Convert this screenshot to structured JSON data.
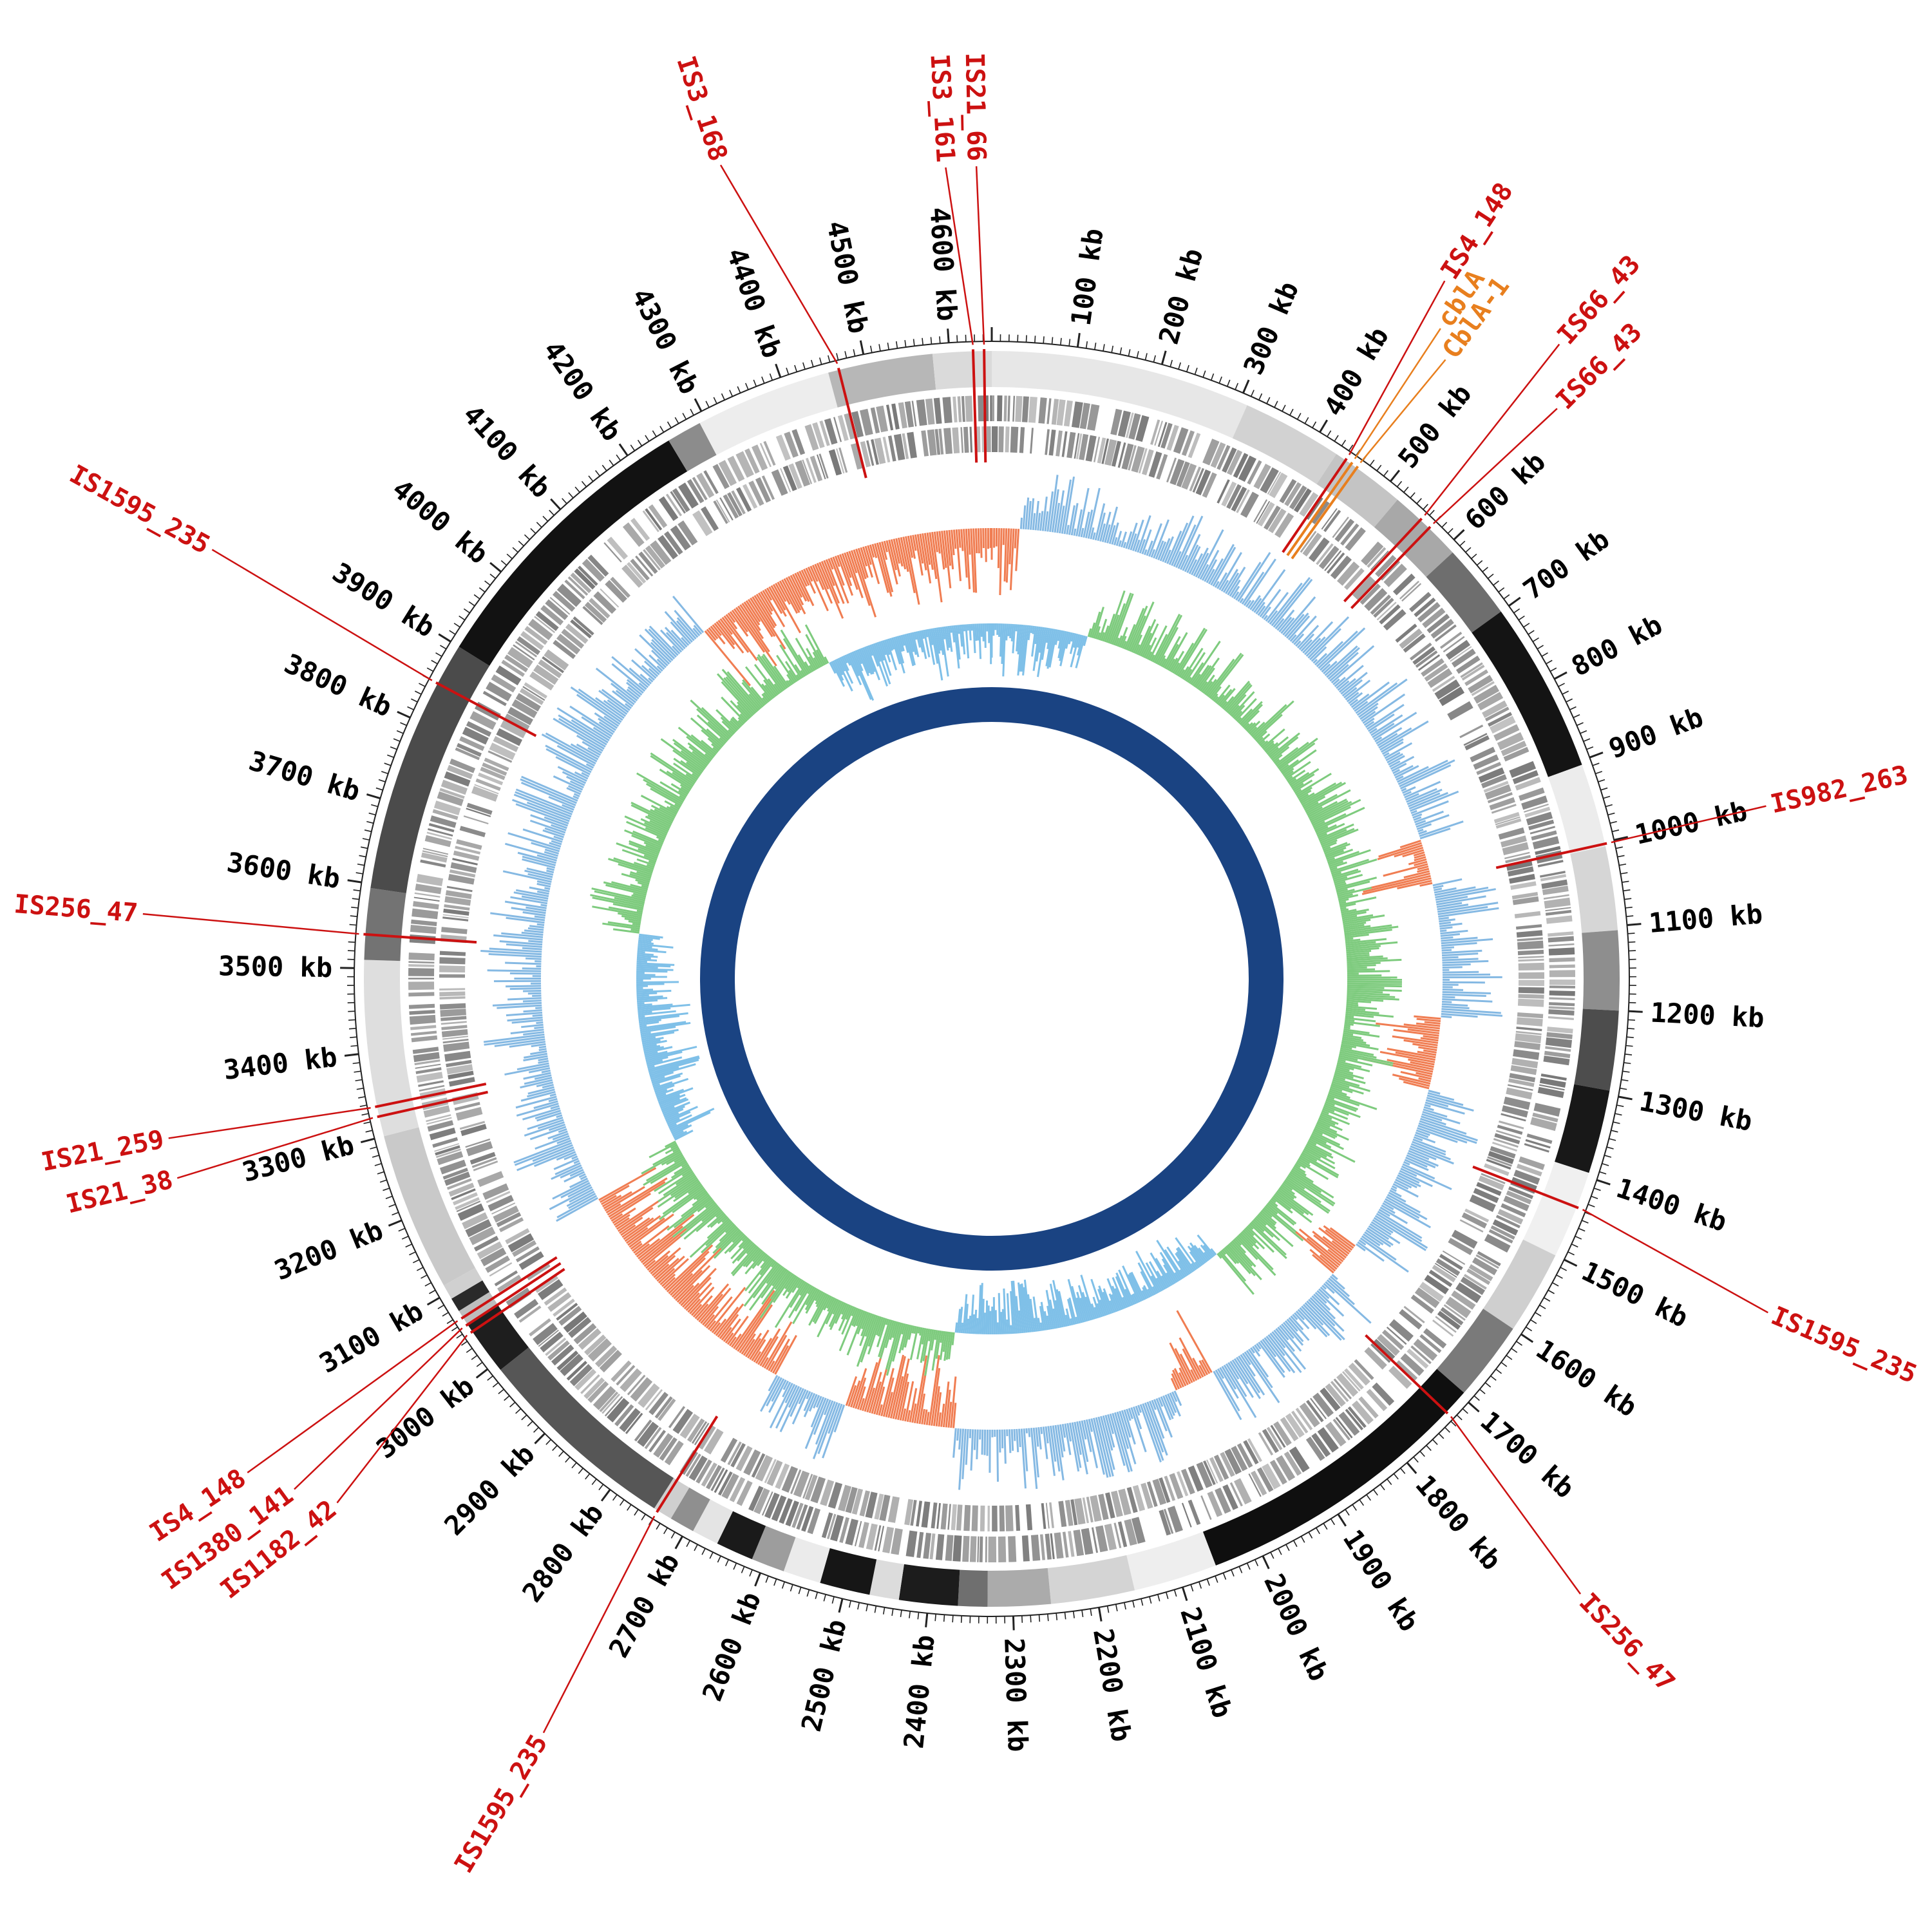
{
  "page": {
    "background": "#ffffff"
  },
  "chart_data": {
    "type": "circular-genome-map",
    "title": "",
    "description": "Circos-style circular bacterial genome map: outer kb scale, grayscale contig ring, two gray CDS rings, GC content histogram (blue above / orange below average), GC skew histogram (green positive / blue negative), solid navy backbone ring, and red/orange IS-element and gene annotations.",
    "genome_length_kb": 4650,
    "scale": {
      "unit": "kb",
      "tick_interval_kb": 100,
      "minor_tick_kb": 10,
      "tick_labels": [
        "100 kb",
        "200 kb",
        "300 kb",
        "400 kb",
        "500 kb",
        "600 kb",
        "700 kb",
        "800 kb",
        "900 kb",
        "1000 kb",
        "1100 kb",
        "1200 kb",
        "1300 kb",
        "1400 kb",
        "1500 kb",
        "1600 kb",
        "1700 kb",
        "1800 kb",
        "1900 kb",
        "2000 kb",
        "2100 kb",
        "2200 kb",
        "2300 kb",
        "2400 kb",
        "2500 kb",
        "2600 kb",
        "2700 kb",
        "2800 kb",
        "2900 kb",
        "3000 kb",
        "3100 kb",
        "3200 kb",
        "3300 kb",
        "3400 kb",
        "3500 kb",
        "3600 kb",
        "3700 kb",
        "3800 kb",
        "3900 kb",
        "4000 kb",
        "4100 kb",
        "4200 kb",
        "4300 kb",
        "4400 kb",
        "4500 kb",
        "4600 kb"
      ]
    },
    "rings_outer_to_inner": [
      {
        "name": "scale-ticks",
        "color": "#222222"
      },
      {
        "name": "contigs",
        "style": "grayscale-blocks"
      },
      {
        "name": "cds-forward",
        "color": "#9a9a9a"
      },
      {
        "name": "cds-reverse",
        "color": "#9a9a9a"
      },
      {
        "name": "gc-content",
        "above_color": "#85b9e3",
        "below_color": "#f07d52"
      },
      {
        "name": "gc-skew",
        "positive_color": "#7ecb7e",
        "negative_color": "#7fc0e8"
      },
      {
        "name": "backbone",
        "color": "#1a4382"
      }
    ],
    "contig_segments": [
      [
        0,
        310,
        "#e7e7e7"
      ],
      [
        310,
        430,
        "#d2d2d2"
      ],
      [
        430,
        520,
        "#c4c4c4"
      ],
      [
        520,
        610,
        "#a8a8a8"
      ],
      [
        610,
        700,
        "#6e6e6e"
      ],
      [
        700,
        905,
        "#141414"
      ],
      [
        905,
        1005,
        "#ececec"
      ],
      [
        1005,
        1105,
        "#d6d6d6"
      ],
      [
        1105,
        1200,
        "#8e8e8e"
      ],
      [
        1200,
        1295,
        "#4d4d4d"
      ],
      [
        1295,
        1395,
        "#181818"
      ],
      [
        1395,
        1500,
        "#f0f0f0"
      ],
      [
        1500,
        1600,
        "#cfcfcf"
      ],
      [
        1600,
        1695,
        "#7a7a7a"
      ],
      [
        1695,
        2055,
        "#0f0f0f"
      ],
      [
        2055,
        2155,
        "#eeeeee"
      ],
      [
        2155,
        2255,
        "#d4d4d4"
      ],
      [
        2255,
        2330,
        "#ababab"
      ],
      [
        2330,
        2365,
        "#6f6f6f"
      ],
      [
        2365,
        2435,
        "#1c1c1c"
      ],
      [
        2435,
        2470,
        "#dcdcdc"
      ],
      [
        2470,
        2530,
        "#161616"
      ],
      [
        2530,
        2575,
        "#ebebeb"
      ],
      [
        2575,
        2615,
        "#9d9d9d"
      ],
      [
        2615,
        2660,
        "#1a1a1a"
      ],
      [
        2660,
        2692,
        "#e4e4e4"
      ],
      [
        2692,
        2722,
        "#8f8f8f"
      ],
      [
        2722,
        2745,
        "#cfcfcf"
      ],
      [
        2745,
        2990,
        "#565656"
      ],
      [
        2990,
        3055,
        "#1e1e1e"
      ],
      [
        3055,
        3075,
        "#bdbdbd"
      ],
      [
        3075,
        3092,
        "#2a2a2a"
      ],
      [
        3092,
        3110,
        "#d0d0d0"
      ],
      [
        3110,
        3300,
        "#c9c9c9"
      ],
      [
        3300,
        3510,
        "#dedede"
      ],
      [
        3510,
        3595,
        "#737373"
      ],
      [
        3595,
        3900,
        "#4b4b4b"
      ],
      [
        3900,
        4250,
        "#121212"
      ],
      [
        4250,
        4292,
        "#8c8c8c"
      ],
      [
        4292,
        4455,
        "#ededed"
      ],
      [
        4455,
        4580,
        "#b7b7b7"
      ],
      [
        4580,
        4650,
        "#dadada"
      ]
    ],
    "gc_content_below_average_regions_kb": [
      [
        4140,
        4650
      ],
      [
        0,
        45
      ],
      [
        930,
        1005
      ],
      [
        1225,
        1345
      ],
      [
        1630,
        1690
      ],
      [
        1945,
        2015
      ],
      [
        2385,
        2570
      ],
      [
        2695,
        3110
      ]
    ],
    "gc_skew_negative_regions_kb": [
      [
        4300,
        4650
      ],
      [
        0,
        200
      ],
      [
        1820,
        2400
      ],
      [
        3140,
        3580
      ]
    ],
    "annotations": [
      {
        "label": "IS3_168",
        "kb": 4468,
        "label_kb": 4412,
        "lr": 1340,
        "color": "#cc1111"
      },
      {
        "label": "IS3_161",
        "kb": 4628,
        "label_kb": 4608,
        "lr": 1270,
        "color": "#cc1111"
      },
      {
        "label": "IS21_66",
        "kb": 4641,
        "label_kb": 4636,
        "lr": 1270,
        "color": "#cc1111"
      },
      {
        "label": "IS4_148",
        "kb": 443,
        "label_kb": 426,
        "lr": 1300,
        "color": "#cc1111"
      },
      {
        "label": "cblA",
        "kb": 451,
        "label_kb": 447,
        "lr": 1235,
        "color": "#e87f1e"
      },
      {
        "label": "CblA-1",
        "kb": 459,
        "label_kb": 468,
        "lr": 1200,
        "color": "#e87f1e"
      },
      {
        "label": "IS66_43",
        "kb": 556,
        "label_kb": 540,
        "lr": 1330,
        "color": "#cc1111"
      },
      {
        "label": "IS66_43",
        "kb": 570,
        "label_kb": 578,
        "lr": 1255,
        "color": "#cc1111"
      },
      {
        "label": "IS982_263",
        "kb": 1002,
        "label_kb": 1000,
        "lr": 1240,
        "color": "#cc1111"
      },
      {
        "label": "IS1595_235",
        "kb": 1438,
        "label_kb": 1463,
        "lr": 1320,
        "color": "#cc1111"
      },
      {
        "label": "IS256_47",
        "kb": 1726,
        "label_kb": 1760,
        "lr": 1330,
        "color": "#cc1111"
      },
      {
        "label": "IS1595_235",
        "kb": 2740,
        "label_kb": 2722,
        "lr": 1370,
        "color": "#cc1111"
      },
      {
        "label": "IS1182_42",
        "kb": 3046,
        "label_kb": 2988,
        "lr": 1310,
        "color": "#cc1111"
      },
      {
        "label": "IS1380_141",
        "kb": 3056,
        "label_kb": 3020,
        "lr": 1350,
        "color": "#cc1111"
      },
      {
        "label": "IS4_148",
        "kb": 3066,
        "label_kb": 3054,
        "lr": 1395,
        "color": "#cc1111"
      },
      {
        "label": "IS21_38",
        "kb": 3324,
        "label_kb": 3310,
        "lr": 1310,
        "color": "#cc1111"
      },
      {
        "label": "IS21_259",
        "kb": 3336,
        "label_kb": 3346,
        "lr": 1310,
        "color": "#cc1111"
      },
      {
        "label": "IS256_47",
        "kb": 3540,
        "label_kb": 3544,
        "lr": 1330,
        "color": "#cc1111"
      },
      {
        "label": "IS1595_235",
        "kb": 3850,
        "label_kb": 3860,
        "lr": 1390,
        "color": "#cc1111"
      }
    ]
  }
}
